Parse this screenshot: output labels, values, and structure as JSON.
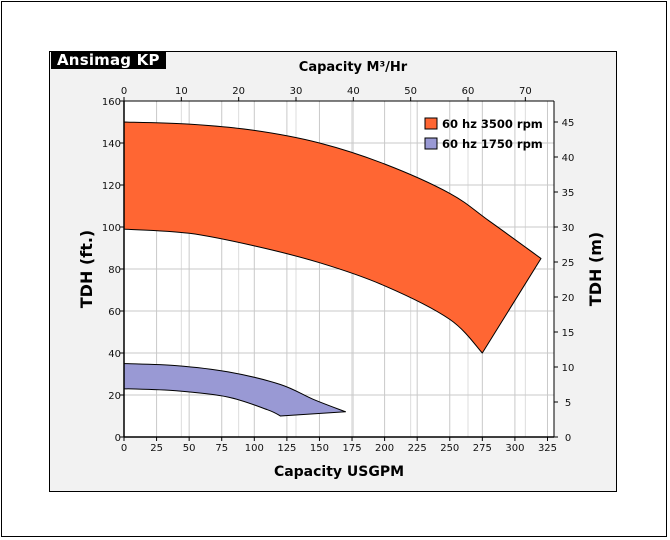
{
  "badge": "Ansimag KP",
  "chart_data": {
    "type": "area",
    "xlabel": "Capacity USGPM",
    "x2label": "Capacity M³/Hr",
    "ylabel": "TDH (ft.)",
    "y2label": "TDH (m)",
    "xlim": [
      0,
      330
    ],
    "ylim": [
      0,
      160
    ],
    "x2lim": [
      0,
      75
    ],
    "y2lim": [
      0,
      48
    ],
    "x_ticks": [
      "0",
      "25",
      "50",
      "75",
      "100",
      "125",
      "150",
      "175",
      "200",
      "225",
      "250",
      "275",
      "300",
      "325"
    ],
    "x2_ticks": [
      "0",
      "10",
      "20",
      "30",
      "40",
      "50",
      "60",
      "70"
    ],
    "y_ticks": [
      "0",
      "20",
      "40",
      "60",
      "80",
      "100",
      "120",
      "140",
      "160"
    ],
    "y2_ticks": [
      "0",
      "5",
      "10",
      "15",
      "20",
      "25",
      "30",
      "35",
      "40",
      "45"
    ],
    "grid": true,
    "legend_position": "top-right",
    "series": [
      {
        "name": "60 hz 3500 rpm",
        "color": "#ff6633",
        "upper": [
          [
            0,
            150
          ],
          [
            50,
            149
          ],
          [
            100,
            146
          ],
          [
            150,
            140
          ],
          [
            200,
            130
          ],
          [
            250,
            116
          ],
          [
            280,
            103
          ],
          [
            320,
            85
          ]
        ],
        "lower": [
          [
            0,
            99
          ],
          [
            50,
            97
          ],
          [
            100,
            91
          ],
          [
            150,
            83
          ],
          [
            200,
            72
          ],
          [
            250,
            56
          ],
          [
            275,
            40
          ]
        ]
      },
      {
        "name": "60 hz 1750 rpm",
        "color": "#9999d4",
        "upper": [
          [
            0,
            35
          ],
          [
            40,
            34
          ],
          [
            80,
            31
          ],
          [
            120,
            25
          ],
          [
            145,
            18
          ],
          [
            170,
            12
          ]
        ],
        "lower": [
          [
            0,
            23
          ],
          [
            40,
            22
          ],
          [
            80,
            19
          ],
          [
            110,
            13
          ],
          [
            120,
            10
          ]
        ]
      }
    ]
  }
}
